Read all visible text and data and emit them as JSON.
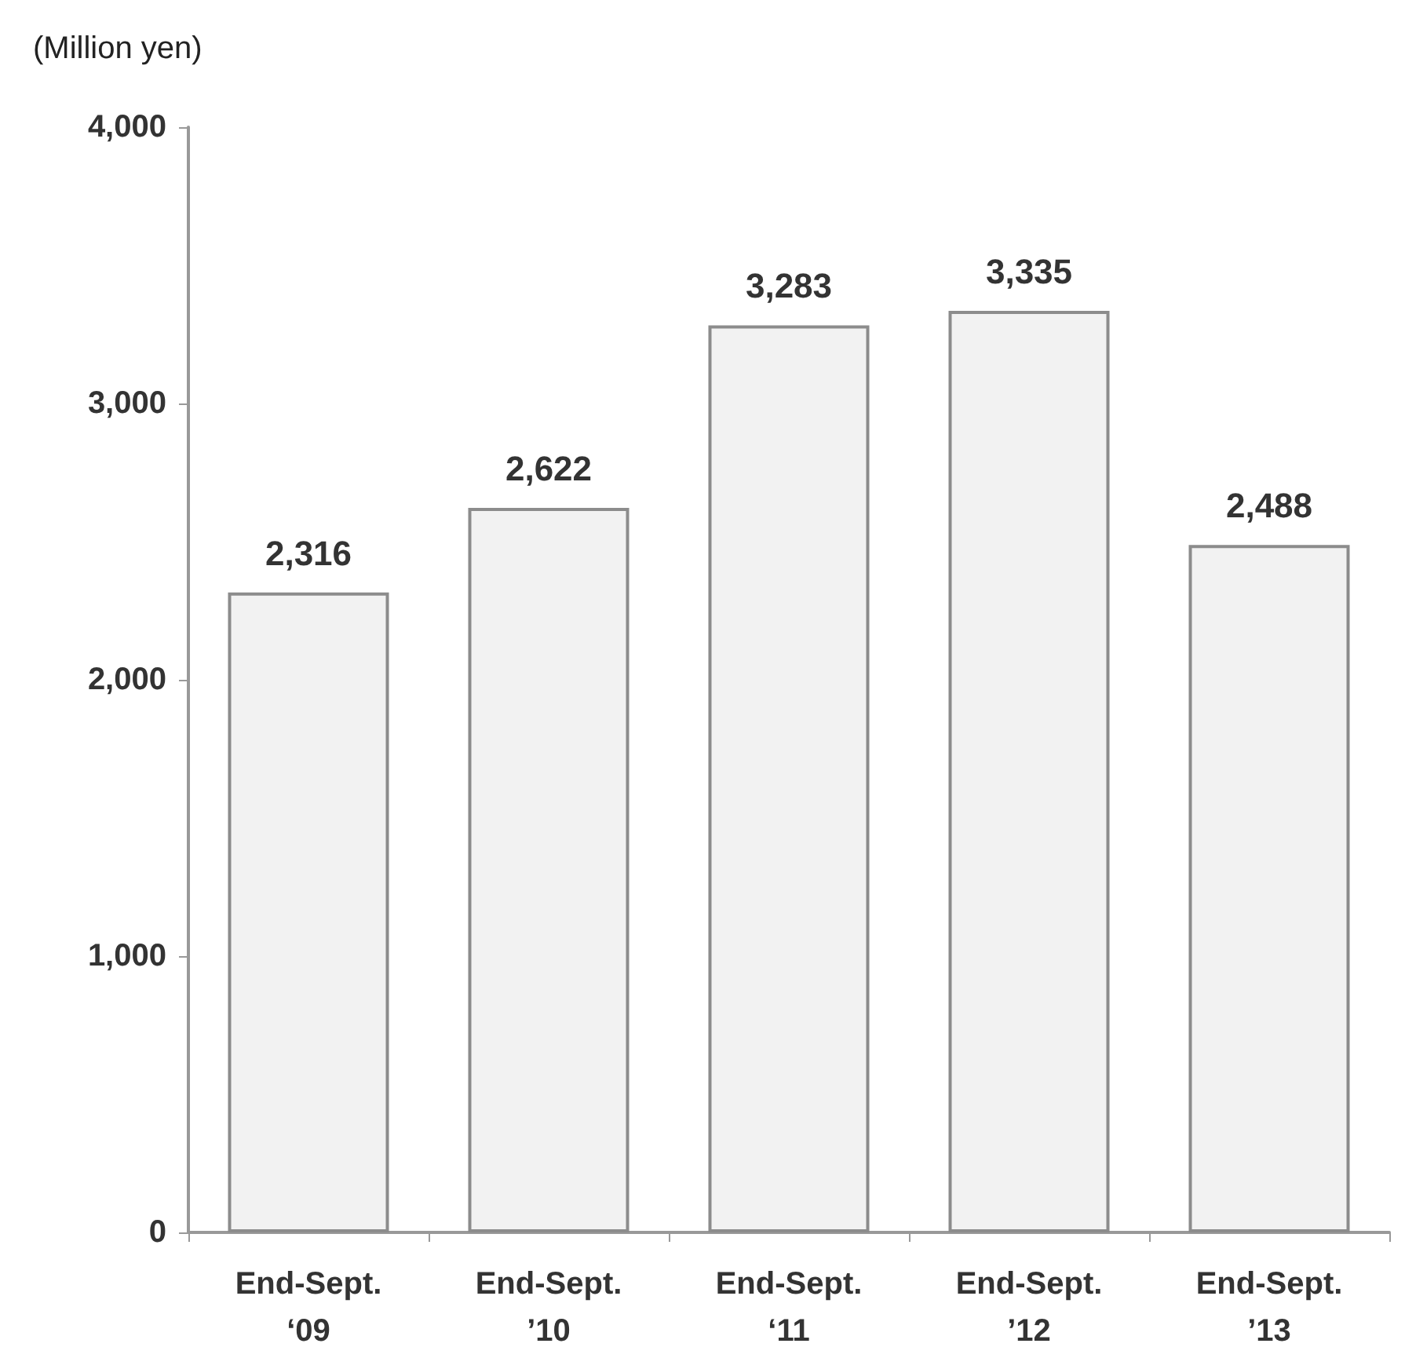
{
  "chart_data": {
    "type": "bar",
    "ylabel": "(Million yen)",
    "categories": [
      "End-Sept.\n‘09",
      "End-Sept.\n’10",
      "End-Sept.\n‘11",
      "End-Sept.\n’12",
      "End-Sept.\n’13"
    ],
    "values": [
      2316,
      2622,
      3283,
      3335,
      2488
    ],
    "value_labels": [
      "2,316",
      "2,622",
      "3,283",
      "3,335",
      "2,488"
    ],
    "color": "#f2f2f2",
    "ylim": [
      0,
      4000
    ],
    "yticks": [
      0,
      {
        "value": 1000,
        "label": "1,000"
      },
      {
        "value": 2000,
        "label": "2,000"
      },
      {
        "value": 3000,
        "label": "3,000"
      },
      {
        "value": 4000,
        "label": "4,000"
      }
    ],
    "grid": false
  }
}
